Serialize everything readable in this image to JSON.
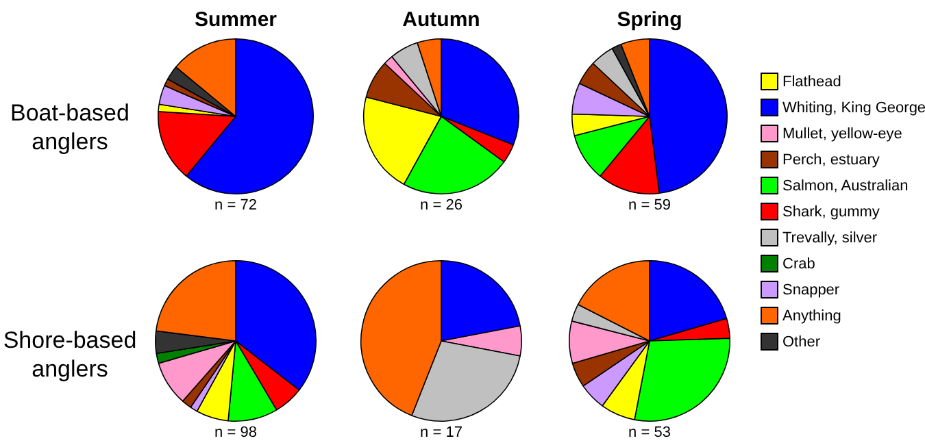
{
  "chart_data": [
    {
      "type": "pie",
      "title": "Summer",
      "ylabel": "Boat-based\nanglers",
      "xlabel": "n = 72",
      "categories": [
        null,
        null,
        null,
        null,
        null,
        null,
        null
      ],
      "values": [
        61,
        15,
        1.5,
        4,
        1.5,
        3,
        14
      ],
      "colors": [
        "#0000ff",
        "#ff0000",
        "#ffff00",
        "#cc99ff",
        "#993300",
        "#333333",
        "#ff6600"
      ]
    },
    {
      "type": "pie",
      "title": "Autumn",
      "xlabel": "n = 26",
      "categories": [
        null,
        null,
        null,
        null,
        null,
        null,
        null,
        null
      ],
      "values": [
        31,
        4,
        23,
        21,
        8,
        2,
        6,
        5
      ],
      "colors": [
        "#0000ff",
        "#ff0000",
        "#00ff00",
        "#ffff00",
        "#993300",
        "#ff99cc",
        "#c0c0c0",
        "#ff6600"
      ]
    },
    {
      "type": "pie",
      "title": "Spring",
      "xlabel": "n = 59",
      "categories": [
        null,
        null,
        null,
        null,
        null,
        null,
        null,
        null,
        null
      ],
      "values": [
        48,
        13,
        10,
        4.5,
        6.5,
        5,
        5,
        2,
        6
      ],
      "colors": [
        "#0000ff",
        "#ff0000",
        "#00ff00",
        "#ffff00",
        "#cc99ff",
        "#993300",
        "#c0c0c0",
        "#333333",
        "#ff6600"
      ]
    },
    {
      "type": "pie",
      "ylabel": "Shore-based\nanglers",
      "xlabel": "n = 98",
      "categories": [
        null,
        null,
        null,
        null,
        null,
        null,
        null,
        null,
        null,
        null
      ],
      "values": [
        35.5,
        6,
        10,
        6.5,
        1.5,
        2,
        9,
        2,
        4.5,
        23
      ],
      "colors": [
        "#0000ff",
        "#ff0000",
        "#00ff00",
        "#ffff00",
        "#cc99ff",
        "#993300",
        "#ff99cc",
        "#008000",
        "#333333",
        "#ff6600"
      ]
    },
    {
      "type": "pie",
      "xlabel": "n = 17",
      "categories": [
        null,
        null,
        null,
        null
      ],
      "values": [
        22,
        6,
        28,
        44
      ],
      "colors": [
        "#0000ff",
        "#ff99cc",
        "#c0c0c0",
        "#ff6600"
      ]
    },
    {
      "type": "pie",
      "xlabel": "n = 53",
      "categories": [
        null,
        null,
        null,
        null,
        null,
        null,
        null,
        null,
        null
      ],
      "values": [
        20.5,
        4,
        28.5,
        7,
        5.5,
        5,
        8.5,
        3.5,
        17.5
      ],
      "colors": [
        "#0000ff",
        "#ff0000",
        "#00ff00",
        "#ffff00",
        "#cc99ff",
        "#993300",
        "#ff99cc",
        "#c0c0c0",
        "#ff6600"
      ]
    },
    {
      "type": "other",
      "categories": [
        "Flathead",
        "Whiting, King George",
        "Mullet, yellow-eye",
        "Perch, estuary",
        "Salmon, Australian",
        "Shark, gummy",
        "Trevally, silver",
        "Crab",
        "Snapper",
        "Anything",
        "Other"
      ],
      "colors": [
        "#ffff00",
        "#0000ff",
        "#ff99cc",
        "#993300",
        "#00ff00",
        "#ff0000",
        "#c0c0c0",
        "#008000",
        "#cc99ff",
        "#ff6600",
        "#333333"
      ]
    }
  ]
}
